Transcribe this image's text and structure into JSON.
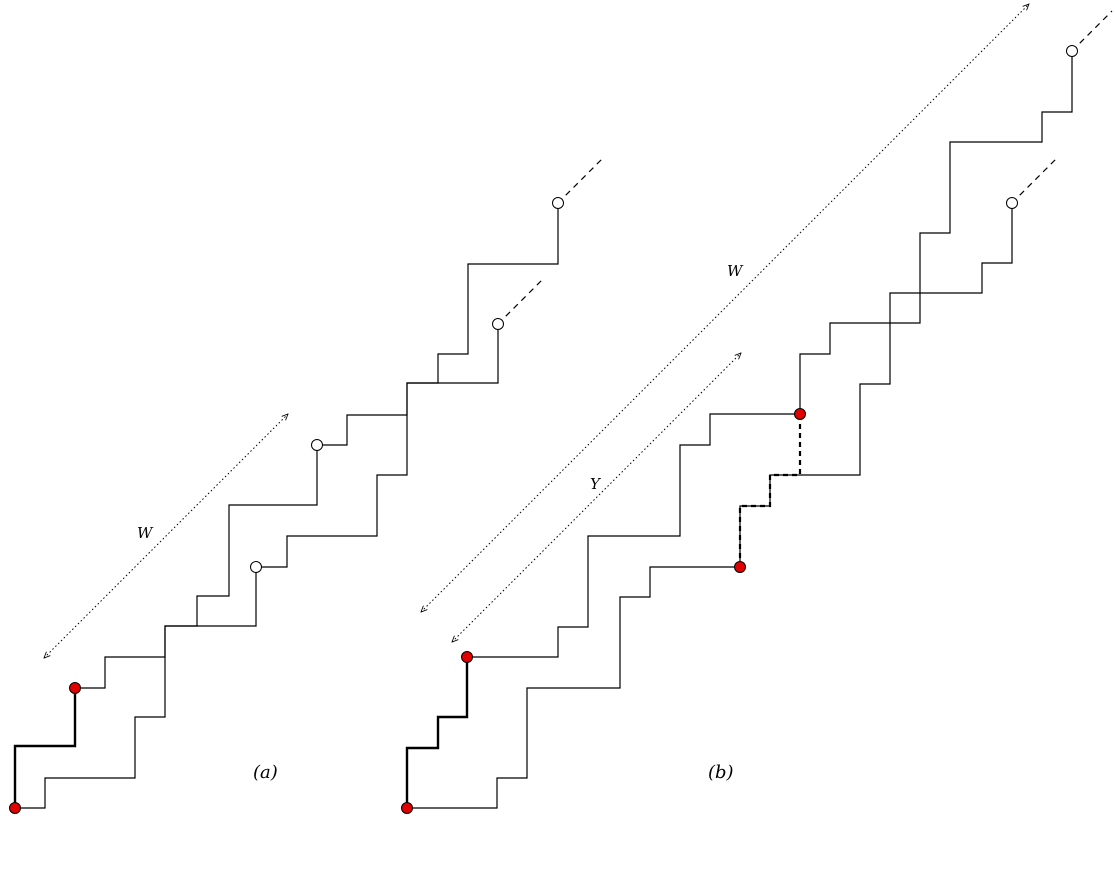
{
  "colors": {
    "line": "#000000",
    "marked_node": "#e00000",
    "open_node": "#ffffff",
    "background": "#ffffff"
  },
  "panel_a": {
    "caption": "(a)",
    "arrow_label": "W"
  },
  "panel_b": {
    "caption": "(b)",
    "arrow_label_long": "W",
    "arrow_label_short": "Y"
  }
}
